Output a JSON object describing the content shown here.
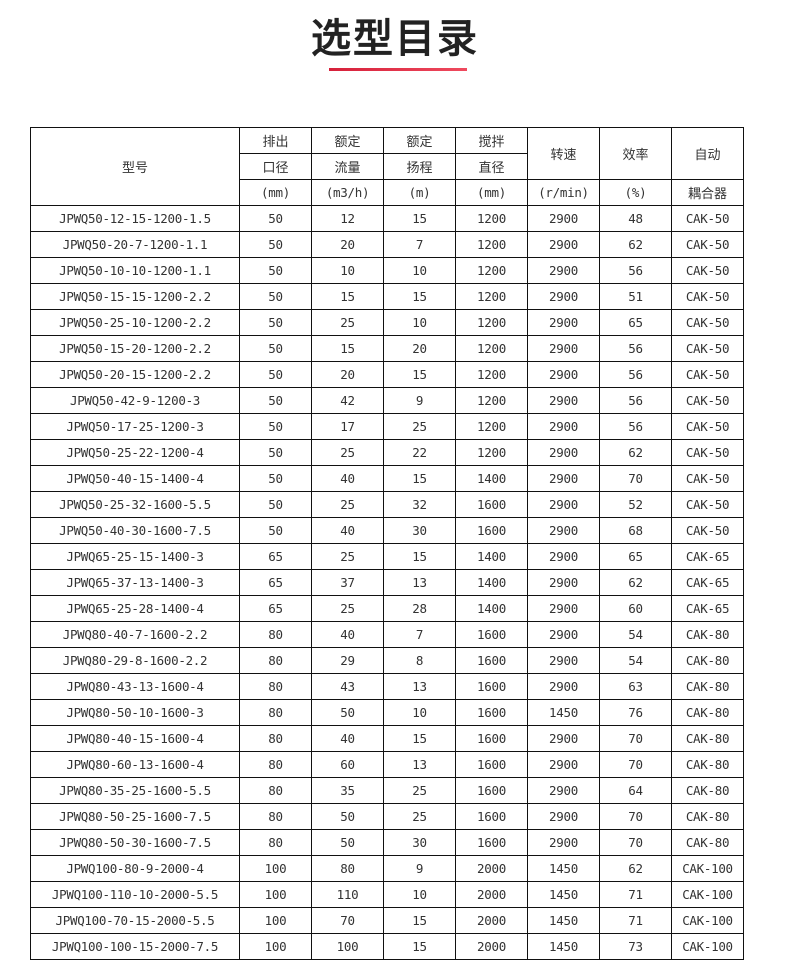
{
  "title": "选型目录",
  "accent_color": "#d6203a",
  "header": {
    "model": "型号",
    "outlet": [
      "排出",
      "口径",
      "(mm)"
    ],
    "flow": [
      "额定",
      "流量",
      "(m3/h)"
    ],
    "head": [
      "额定",
      "扬程",
      "(m)"
    ],
    "stir": [
      "搅拌",
      "直径",
      "(mm)"
    ],
    "speed": [
      "转速",
      "(r/min)"
    ],
    "eff": [
      "效率",
      "(%)"
    ],
    "coupler": [
      "自动",
      "耦合器"
    ]
  },
  "rows": [
    [
      "JPWQ50-12-15-1200-1.5",
      "50",
      "12",
      "15",
      "1200",
      "2900",
      "48",
      "CAK-50"
    ],
    [
      "JPWQ50-20-7-1200-1.1",
      "50",
      "20",
      "7",
      "1200",
      "2900",
      "62",
      "CAK-50"
    ],
    [
      "JPWQ50-10-10-1200-1.1",
      "50",
      "10",
      "10",
      "1200",
      "2900",
      "56",
      "CAK-50"
    ],
    [
      "JPWQ50-15-15-1200-2.2",
      "50",
      "15",
      "15",
      "1200",
      "2900",
      "51",
      "CAK-50"
    ],
    [
      "JPWQ50-25-10-1200-2.2",
      "50",
      "25",
      "10",
      "1200",
      "2900",
      "65",
      "CAK-50"
    ],
    [
      "JPWQ50-15-20-1200-2.2",
      "50",
      "15",
      "20",
      "1200",
      "2900",
      "56",
      "CAK-50"
    ],
    [
      "JPWQ50-20-15-1200-2.2",
      "50",
      "20",
      "15",
      "1200",
      "2900",
      "56",
      "CAK-50"
    ],
    [
      "JPWQ50-42-9-1200-3",
      "50",
      "42",
      "9",
      "1200",
      "2900",
      "56",
      "CAK-50"
    ],
    [
      "JPWQ50-17-25-1200-3",
      "50",
      "17",
      "25",
      "1200",
      "2900",
      "56",
      "CAK-50"
    ],
    [
      "JPWQ50-25-22-1200-4",
      "50",
      "25",
      "22",
      "1200",
      "2900",
      "62",
      "CAK-50"
    ],
    [
      "JPWQ50-40-15-1400-4",
      "50",
      "40",
      "15",
      "1400",
      "2900",
      "70",
      "CAK-50"
    ],
    [
      "JPWQ50-25-32-1600-5.5",
      "50",
      "25",
      "32",
      "1600",
      "2900",
      "52",
      "CAK-50"
    ],
    [
      "JPWQ50-40-30-1600-7.5",
      "50",
      "40",
      "30",
      "1600",
      "2900",
      "68",
      "CAK-50"
    ],
    [
      "JPWQ65-25-15-1400-3",
      "65",
      "25",
      "15",
      "1400",
      "2900",
      "65",
      "CAK-65"
    ],
    [
      "JPWQ65-37-13-1400-3",
      "65",
      "37",
      "13",
      "1400",
      "2900",
      "62",
      "CAK-65"
    ],
    [
      "JPWQ65-25-28-1400-4",
      "65",
      "25",
      "28",
      "1400",
      "2900",
      "60",
      "CAK-65"
    ],
    [
      "JPWQ80-40-7-1600-2.2",
      "80",
      "40",
      "7",
      "1600",
      "2900",
      "54",
      "CAK-80"
    ],
    [
      "JPWQ80-29-8-1600-2.2",
      "80",
      "29",
      "8",
      "1600",
      "2900",
      "54",
      "CAK-80"
    ],
    [
      "JPWQ80-43-13-1600-4",
      "80",
      "43",
      "13",
      "1600",
      "2900",
      "63",
      "CAK-80"
    ],
    [
      "JPWQ80-50-10-1600-3",
      "80",
      "50",
      "10",
      "1600",
      "1450",
      "76",
      "CAK-80"
    ],
    [
      "JPWQ80-40-15-1600-4",
      "80",
      "40",
      "15",
      "1600",
      "2900",
      "70",
      "CAK-80"
    ],
    [
      "JPWQ80-60-13-1600-4",
      "80",
      "60",
      "13",
      "1600",
      "2900",
      "70",
      "CAK-80"
    ],
    [
      "JPWQ80-35-25-1600-5.5",
      "80",
      "35",
      "25",
      "1600",
      "2900",
      "64",
      "CAK-80"
    ],
    [
      "JPWQ80-50-25-1600-7.5",
      "80",
      "50",
      "25",
      "1600",
      "2900",
      "70",
      "CAK-80"
    ],
    [
      "JPWQ80-50-30-1600-7.5",
      "80",
      "50",
      "30",
      "1600",
      "2900",
      "70",
      "CAK-80"
    ],
    [
      "JPWQ100-80-9-2000-4",
      "100",
      "80",
      "9",
      "2000",
      "1450",
      "62",
      "CAK-100"
    ],
    [
      "JPWQ100-110-10-2000-5.5",
      "100",
      "110",
      "10",
      "2000",
      "1450",
      "71",
      "CAK-100"
    ],
    [
      "JPWQ100-70-15-2000-5.5",
      "100",
      "70",
      "15",
      "2000",
      "1450",
      "71",
      "CAK-100"
    ],
    [
      "JPWQ100-100-15-2000-7.5",
      "100",
      "100",
      "15",
      "2000",
      "1450",
      "73",
      "CAK-100"
    ]
  ]
}
